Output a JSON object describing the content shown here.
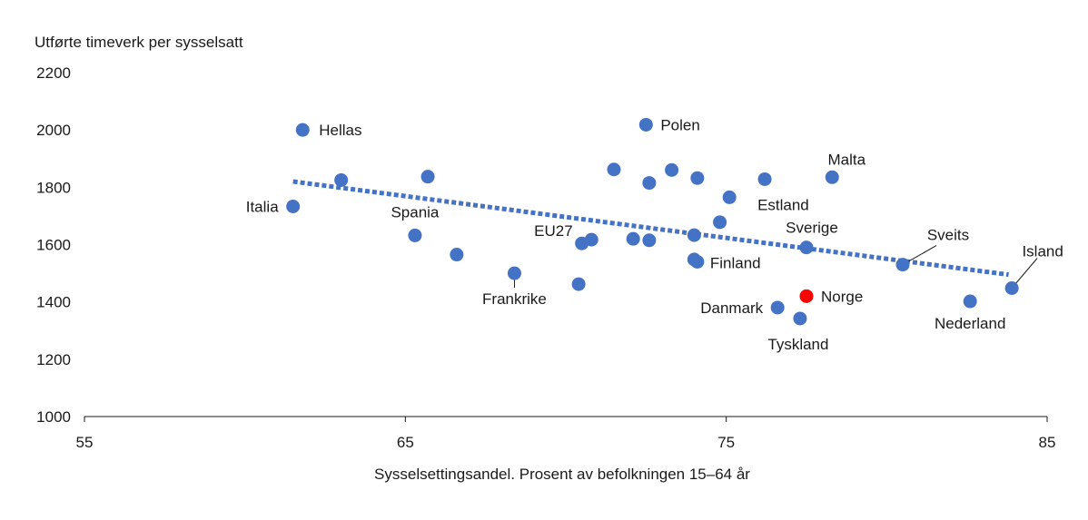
{
  "chart_data": {
    "type": "scatter",
    "title": "",
    "ylabel": "Utførte timeverk per sysselsatt",
    "xlabel": "Sysselsettingsandel. Prosent av befolkningen 15–64 år",
    "xlim": [
      55,
      85
    ],
    "ylim": [
      1000,
      2200
    ],
    "xticks": [
      55,
      65,
      75,
      85
    ],
    "yticks": [
      1000,
      1200,
      1400,
      1600,
      1800,
      2000,
      2200
    ],
    "grid": false,
    "legend": "none",
    "colors": {
      "point": "#4472c4",
      "highlight": "#ff0000",
      "trend": "#4472c4",
      "axis": "#1a1a1a"
    },
    "trendline": {
      "x": [
        61.5,
        83.8
      ],
      "y": [
        1820,
        1495
      ]
    },
    "points": [
      {
        "x": 61.8,
        "y": 2000,
        "label": "Hellas"
      },
      {
        "x": 61.5,
        "y": 1733,
        "label": "Italia"
      },
      {
        "x": 63.0,
        "y": 1825,
        "label": ""
      },
      {
        "x": 65.7,
        "y": 1837,
        "label": ""
      },
      {
        "x": 65.3,
        "y": 1632,
        "label": "Spania"
      },
      {
        "x": 66.6,
        "y": 1565,
        "label": ""
      },
      {
        "x": 68.4,
        "y": 1500,
        "label": "Frankrike"
      },
      {
        "x": 70.4,
        "y": 1462,
        "label": ""
      },
      {
        "x": 70.5,
        "y": 1604,
        "label": "EU27"
      },
      {
        "x": 70.8,
        "y": 1617,
        "label": ""
      },
      {
        "x": 71.5,
        "y": 1862,
        "label": ""
      },
      {
        "x": 72.1,
        "y": 1620,
        "label": ""
      },
      {
        "x": 72.5,
        "y": 2018,
        "label": "Polen"
      },
      {
        "x": 72.6,
        "y": 1815,
        "label": ""
      },
      {
        "x": 72.6,
        "y": 1615,
        "label": ""
      },
      {
        "x": 73.3,
        "y": 1860,
        "label": ""
      },
      {
        "x": 74.1,
        "y": 1832,
        "label": ""
      },
      {
        "x": 74.0,
        "y": 1633,
        "label": ""
      },
      {
        "x": 74.0,
        "y": 1548,
        "label": ""
      },
      {
        "x": 74.1,
        "y": 1540,
        "label": "Finland"
      },
      {
        "x": 74.8,
        "y": 1678,
        "label": ""
      },
      {
        "x": 75.1,
        "y": 1765,
        "label": ""
      },
      {
        "x": 76.2,
        "y": 1828,
        "label": "Estland"
      },
      {
        "x": 78.3,
        "y": 1835,
        "label": "Malta"
      },
      {
        "x": 77.5,
        "y": 1590,
        "label": "Sverige"
      },
      {
        "x": 76.6,
        "y": 1380,
        "label": "Danmark"
      },
      {
        "x": 77.3,
        "y": 1342,
        "label": "Tyskland"
      },
      {
        "x": 77.5,
        "y": 1420,
        "label": "Norge",
        "highlight": true
      },
      {
        "x": 80.5,
        "y": 1530,
        "label": "Sveits"
      },
      {
        "x": 82.6,
        "y": 1402,
        "label": "Nederland"
      },
      {
        "x": 83.9,
        "y": 1448,
        "label": "Island"
      }
    ]
  }
}
